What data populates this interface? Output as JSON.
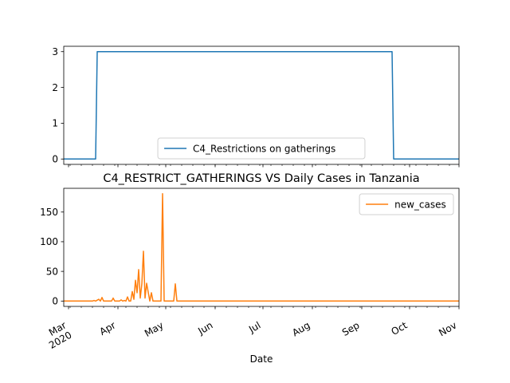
{
  "chart_data": [
    {
      "type": "line",
      "title": "",
      "xlabel": "",
      "ylabel": "",
      "x_range": [
        "2020-02-27",
        "2020-11-01"
      ],
      "ylim": [
        -0.15,
        3.15
      ],
      "yticks": [
        0,
        1,
        2,
        3
      ],
      "grid": false,
      "legend": "lower center",
      "series": [
        {
          "name": "C4_Restrictions on gatherings",
          "color": "#1f77b4",
          "points": [
            [
              "2020-02-27",
              0
            ],
            [
              "2020-03-18",
              0
            ],
            [
              "2020-03-19",
              3
            ],
            [
              "2020-09-20",
              3
            ],
            [
              "2020-09-21",
              0
            ],
            [
              "2020-11-01",
              0
            ]
          ]
        }
      ]
    },
    {
      "type": "line",
      "title": "C4_RESTRICT_GATHERINGS VS Daily Cases in Tanzania",
      "xlabel": "Date",
      "ylabel": "",
      "x_range": [
        "2020-02-27",
        "2020-11-01"
      ],
      "ylim": [
        -9,
        190
      ],
      "yticks": [
        0,
        50,
        100,
        150
      ],
      "grid": false,
      "legend": "upper right",
      "xtick_labels": [
        {
          "date": "2020-03-01",
          "label": "Mar",
          "sublabel": "2020"
        },
        {
          "date": "2020-04-01",
          "label": "Apr"
        },
        {
          "date": "2020-05-01",
          "label": "May"
        },
        {
          "date": "2020-06-01",
          "label": "Jun"
        },
        {
          "date": "2020-07-01",
          "label": "Jul"
        },
        {
          "date": "2020-08-01",
          "label": "Aug"
        },
        {
          "date": "2020-09-01",
          "label": "Sep"
        },
        {
          "date": "2020-10-01",
          "label": "Oct"
        },
        {
          "date": "2020-11-01",
          "label": "Nov"
        }
      ],
      "series": [
        {
          "name": "new_cases",
          "color": "#ff7f0e",
          "points": [
            [
              "2020-02-27",
              0
            ],
            [
              "2020-03-16",
              0
            ],
            [
              "2020-03-17",
              1
            ],
            [
              "2020-03-18",
              0
            ],
            [
              "2020-03-20",
              3
            ],
            [
              "2020-03-21",
              0
            ],
            [
              "2020-03-22",
              6
            ],
            [
              "2020-03-23",
              0
            ],
            [
              "2020-03-28",
              0
            ],
            [
              "2020-03-29",
              5
            ],
            [
              "2020-03-30",
              0
            ],
            [
              "2020-04-02",
              0
            ],
            [
              "2020-04-03",
              2
            ],
            [
              "2020-04-04",
              0
            ],
            [
              "2020-04-05",
              1
            ],
            [
              "2020-04-06",
              0
            ],
            [
              "2020-04-07",
              7
            ],
            [
              "2020-04-08",
              0
            ],
            [
              "2020-04-09",
              0
            ],
            [
              "2020-04-10",
              16
            ],
            [
              "2020-04-11",
              3
            ],
            [
              "2020-04-12",
              35
            ],
            [
              "2020-04-13",
              14
            ],
            [
              "2020-04-14",
              53
            ],
            [
              "2020-04-15",
              5
            ],
            [
              "2020-04-16",
              29
            ],
            [
              "2020-04-17",
              84
            ],
            [
              "2020-04-18",
              5
            ],
            [
              "2020-04-19",
              30
            ],
            [
              "2020-04-20",
              15
            ],
            [
              "2020-04-21",
              0
            ],
            [
              "2020-04-22",
              14
            ],
            [
              "2020-04-23",
              0
            ],
            [
              "2020-04-24",
              0
            ],
            [
              "2020-04-25",
              0
            ],
            [
              "2020-04-26",
              0
            ],
            [
              "2020-04-27",
              0
            ],
            [
              "2020-04-28",
              0
            ],
            [
              "2020-04-29",
              181
            ],
            [
              "2020-04-30",
              0
            ],
            [
              "2020-05-06",
              0
            ],
            [
              "2020-05-07",
              29
            ],
            [
              "2020-05-08",
              0
            ],
            [
              "2020-11-01",
              0
            ]
          ]
        }
      ]
    }
  ]
}
